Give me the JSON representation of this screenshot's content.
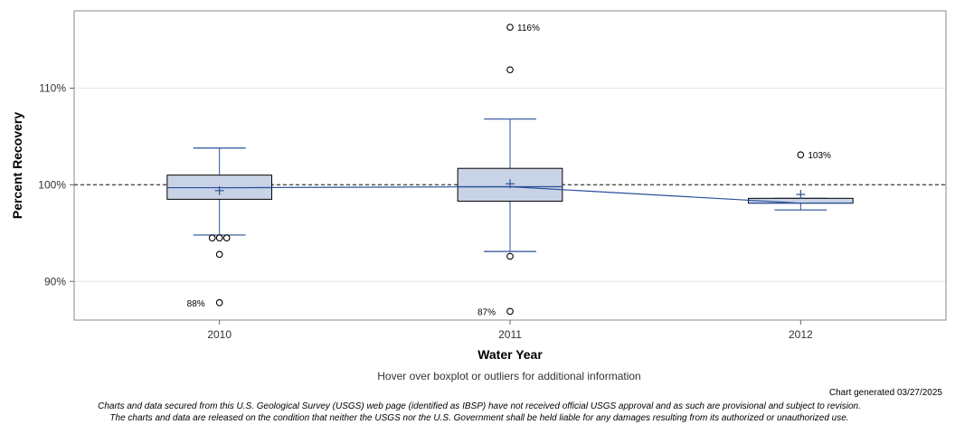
{
  "chart_data": {
    "type": "boxplot",
    "xlabel": "Water Year",
    "ylabel": "Percent Recovery",
    "categories": [
      "2010",
      "2011",
      "2012"
    ],
    "ylim": [
      86,
      118
    ],
    "yticks": [
      90,
      100,
      110
    ],
    "ytick_labels": [
      "90%",
      "100%",
      "110%"
    ],
    "reference_line": 100,
    "boxes": [
      {
        "category": "2010",
        "whisker_low": 94.8,
        "q1": 98.5,
        "median": 99.7,
        "q3": 101.0,
        "whisker_high": 103.8,
        "mean": 99.4,
        "outliers": [
          {
            "value": 94.5,
            "offset": -1
          },
          {
            "value": 94.5,
            "offset": 0
          },
          {
            "value": 94.5,
            "offset": 1
          },
          {
            "value": 92.8,
            "offset": 0
          },
          {
            "value": 87.8,
            "offset": 0,
            "label": "88%"
          }
        ]
      },
      {
        "category": "2011",
        "whisker_low": 93.1,
        "q1": 98.3,
        "median": 99.8,
        "q3": 101.7,
        "whisker_high": 106.8,
        "mean": 100.1,
        "outliers": [
          {
            "value": 116.3,
            "offset": 0,
            "label": "116%"
          },
          {
            "value": 111.9,
            "offset": 0
          },
          {
            "value": 92.6,
            "offset": 0
          },
          {
            "value": 86.9,
            "offset": 0,
            "label": "87%"
          }
        ]
      },
      {
        "category": "2012",
        "whisker_low": 97.4,
        "q1": 98.1,
        "median": 98.1,
        "q3": 98.6,
        "whisker_high": 98.6,
        "mean": 99.0,
        "outliers": [
          {
            "value": 103.1,
            "offset": 0,
            "label": "103%"
          }
        ]
      }
    ],
    "colors": {
      "box_fill": "#c9d3e6",
      "box_stroke": "#000000",
      "whisker": "#2a4f9a",
      "median_line": "#2a4f9a",
      "outlier_stroke": "#000000"
    }
  },
  "notes": {
    "hover": "Hover over boxplot or outliers for additional information",
    "generated": "Chart generated 03/27/2025",
    "disclaimer_1": "Charts and data secured from this U.S. Geological Survey (USGS) web page (identified as IBSP) have not received official USGS approval and as such are provisional and subject to revision.",
    "disclaimer_2": "The charts and data are released on the condition that neither the USGS nor the U.S. Government shall be held liable for any damages resulting from its authorized or unauthorized use."
  }
}
